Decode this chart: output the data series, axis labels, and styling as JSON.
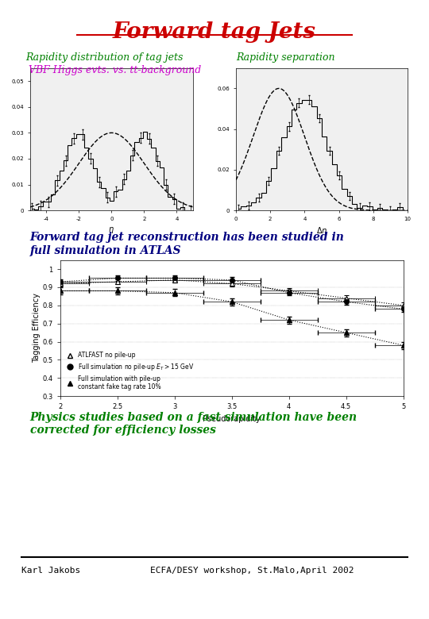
{
  "title": "Forward tag Jets",
  "title_color": "#cc0000",
  "title_fontsize": 20,
  "subtitle1_line1": "Rapidity distribution of tag jets",
  "subtitle1_line2": " VBF Higgs evts. vs. tt-background",
  "subtitle2": "Rapidity separation",
  "subtitle_color": "#008000",
  "subtitle_magenta": "#cc00cc",
  "text_reconstruction": "Forward tag jet reconstruction has been studied in\nfull simulation in ATLAS",
  "text_physics": "Physics studies based on a fast simulation have been\ncorrected for efficiency losses",
  "text_reconstruction_color": "#000080",
  "text_physics_color": "#008000",
  "footer_left": "Karl Jakobs",
  "footer_right": "ECFA/DESY workshop, St.Malo,April 2002",
  "footer_color": "#000000",
  "background_color": "#ffffff"
}
